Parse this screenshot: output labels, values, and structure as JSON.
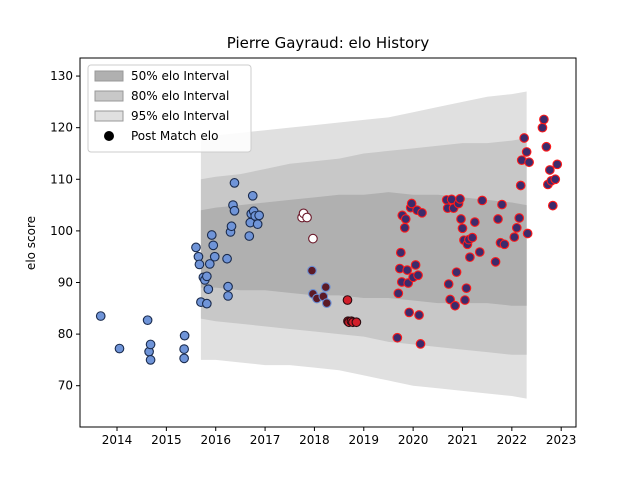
{
  "chart_data": {
    "type": "scatter",
    "title": "Pierre Gayraud: elo History",
    "xlabel": "",
    "ylabel": "elo score",
    "xlim": [
      2013.25,
      2023.3
    ],
    "ylim": [
      62,
      133.5
    ],
    "x_ticks": [
      2014,
      2015,
      2016,
      2017,
      2018,
      2019,
      2020,
      2021,
      2022,
      2023
    ],
    "y_ticks": [
      70,
      80,
      90,
      100,
      110,
      120,
      130
    ],
    "legend": {
      "placement": "top-left",
      "entries": [
        "50% elo Interval",
        "80% elo Interval",
        "95% elo Interval",
        "Post Match elo"
      ]
    },
    "bands": {
      "colors": {
        "i50": "#b0b0b0",
        "i80": "#c8c8c8",
        "i95": "#e0e0e0"
      },
      "x": [
        2015.7,
        2016.0,
        2016.5,
        2017.0,
        2017.5,
        2018.0,
        2018.5,
        2019.0,
        2019.5,
        2020.0,
        2020.5,
        2021.0,
        2021.5,
        2022.0,
        2022.3
      ],
      "i95_upper": [
        118,
        118.5,
        119,
        119.5,
        120,
        120.5,
        121,
        121.5,
        122,
        123,
        124,
        125,
        126,
        126.5,
        127
      ],
      "i95_lower": [
        75,
        75,
        74.5,
        74,
        74,
        73.5,
        73,
        72,
        71,
        70,
        69.5,
        69,
        68.5,
        68,
        67.5
      ],
      "i80_upper": [
        110,
        110.5,
        111,
        112,
        113,
        113.5,
        114,
        115,
        115.5,
        116,
        116.5,
        117,
        117,
        117.5,
        118
      ],
      "i80_lower": [
        83,
        82.5,
        82,
        81.5,
        81,
        80.5,
        80,
        79.5,
        78.5,
        78,
        77.5,
        77,
        76.5,
        76,
        76
      ],
      "i50_upper": [
        104,
        104.5,
        105,
        105.5,
        106,
        106.5,
        107,
        107,
        107.5,
        107,
        107,
        106.5,
        106,
        105.5,
        105
      ],
      "i50_lower": [
        89,
        89,
        88.5,
        88.5,
        88,
        87.5,
        87.5,
        87,
        87,
        86.5,
        86,
        86,
        86,
        85.5,
        85.5
      ]
    },
    "series": [
      {
        "name": "Post Match elo",
        "points": [
          [
            2013.67,
            83.5,
            "blue"
          ],
          [
            2014.05,
            77.2,
            "blue"
          ],
          [
            2014.62,
            82.7,
            "blue"
          ],
          [
            2014.65,
            76.6,
            "blue"
          ],
          [
            2014.68,
            78.0,
            "blue"
          ],
          [
            2014.68,
            75.0,
            "blue"
          ],
          [
            2015.37,
            79.7,
            "blue"
          ],
          [
            2015.36,
            77.1,
            "blue"
          ],
          [
            2015.36,
            75.3,
            "blue"
          ],
          [
            2015.6,
            96.8,
            "blue"
          ],
          [
            2015.65,
            95.0,
            "blue"
          ],
          [
            2015.67,
            93.5,
            "blue"
          ],
          [
            2015.7,
            86.2,
            "blue"
          ],
          [
            2015.75,
            91.0,
            "blue"
          ],
          [
            2015.78,
            90.5,
            "blue"
          ],
          [
            2015.82,
            91.2,
            "blue"
          ],
          [
            2015.82,
            85.9,
            "blue"
          ],
          [
            2015.85,
            88.7,
            "blue"
          ],
          [
            2015.88,
            93.6,
            "blue"
          ],
          [
            2015.92,
            99.2,
            "blue"
          ],
          [
            2015.95,
            97.2,
            "blue"
          ],
          [
            2015.98,
            95.0,
            "blue"
          ],
          [
            2016.23,
            94.6,
            "blue"
          ],
          [
            2016.25,
            89.2,
            "blue"
          ],
          [
            2016.25,
            87.4,
            "blue"
          ],
          [
            2016.3,
            99.8,
            "blue"
          ],
          [
            2016.32,
            100.9,
            "blue"
          ],
          [
            2016.35,
            105.0,
            "blue"
          ],
          [
            2016.38,
            103.9,
            "blue"
          ],
          [
            2016.38,
            109.3,
            "blue"
          ],
          [
            2016.68,
            99.0,
            "blue"
          ],
          [
            2016.7,
            101.6,
            "blue"
          ],
          [
            2016.72,
            103.3,
            "blue"
          ],
          [
            2016.75,
            106.8,
            "blue"
          ],
          [
            2016.77,
            103.8,
            "blue"
          ],
          [
            2016.8,
            102.9,
            "blue"
          ],
          [
            2016.85,
            101.3,
            "blue"
          ],
          [
            2016.88,
            103.0,
            "blue"
          ],
          [
            2017.75,
            102.6,
            "white"
          ],
          [
            2017.78,
            103.4,
            "white"
          ],
          [
            2017.85,
            102.6,
            "white"
          ],
          [
            2017.97,
            98.5,
            "white"
          ],
          [
            2017.95,
            92.3,
            "maroon"
          ],
          [
            2017.97,
            87.8,
            "maroon"
          ],
          [
            2018.05,
            86.9,
            "maroon"
          ],
          [
            2018.18,
            87.3,
            "maroon"
          ],
          [
            2018.23,
            89.1,
            "maroon"
          ],
          [
            2018.25,
            86.0,
            "maroon"
          ],
          [
            2018.67,
            86.6,
            "red"
          ],
          [
            2018.68,
            82.5,
            "red"
          ],
          [
            2018.7,
            82.3,
            "red"
          ],
          [
            2018.75,
            82.5,
            "red"
          ],
          [
            2018.78,
            82.3,
            "red"
          ],
          [
            2018.85,
            82.3,
            "red"
          ],
          [
            2019.68,
            79.3,
            "purple"
          ],
          [
            2019.7,
            87.9,
            "purple"
          ],
          [
            2019.73,
            92.7,
            "purple"
          ],
          [
            2019.75,
            95.8,
            "purple"
          ],
          [
            2019.77,
            90.1,
            "purple"
          ],
          [
            2019.78,
            103.0,
            "purple"
          ],
          [
            2019.83,
            100.6,
            "purple"
          ],
          [
            2019.85,
            102.3,
            "purple"
          ],
          [
            2019.88,
            92.4,
            "purple"
          ],
          [
            2019.9,
            89.9,
            "purple"
          ],
          [
            2019.92,
            84.2,
            "purple"
          ],
          [
            2019.95,
            104.5,
            "purple"
          ],
          [
            2019.97,
            105.3,
            "purple"
          ],
          [
            2020.0,
            91.0,
            "purple"
          ],
          [
            2020.05,
            93.4,
            "purple"
          ],
          [
            2020.08,
            104.0,
            "purple"
          ],
          [
            2020.1,
            91.4,
            "purple"
          ],
          [
            2020.12,
            83.7,
            "purple"
          ],
          [
            2020.15,
            78.1,
            "purple"
          ],
          [
            2020.18,
            103.5,
            "purple"
          ],
          [
            2020.68,
            106.0,
            "purple"
          ],
          [
            2020.7,
            104.4,
            "purple"
          ],
          [
            2020.72,
            89.7,
            "purple"
          ],
          [
            2020.75,
            86.7,
            "purple"
          ],
          [
            2020.78,
            106.1,
            "purple"
          ],
          [
            2020.82,
            104.4,
            "purple"
          ],
          [
            2020.85,
            85.5,
            "purple"
          ],
          [
            2020.88,
            92.0,
            "purple"
          ],
          [
            2020.92,
            105.3,
            "purple"
          ],
          [
            2020.95,
            106.2,
            "purple"
          ],
          [
            2020.97,
            102.3,
            "purple"
          ],
          [
            2021.0,
            100.5,
            "purple"
          ],
          [
            2021.03,
            98.2,
            "purple"
          ],
          [
            2021.05,
            86.6,
            "purple"
          ],
          [
            2021.08,
            88.9,
            "purple"
          ],
          [
            2021.1,
            97.4,
            "purple"
          ],
          [
            2021.13,
            98.3,
            "purple"
          ],
          [
            2021.15,
            94.9,
            "purple"
          ],
          [
            2021.2,
            98.7,
            "purple"
          ],
          [
            2021.25,
            101.7,
            "purple"
          ],
          [
            2021.35,
            95.9,
            "purple"
          ],
          [
            2021.4,
            105.9,
            "purple"
          ],
          [
            2021.67,
            94.0,
            "purple"
          ],
          [
            2021.72,
            102.3,
            "purple"
          ],
          [
            2021.77,
            97.7,
            "purple"
          ],
          [
            2021.8,
            105.1,
            "purple"
          ],
          [
            2021.85,
            97.4,
            "purple"
          ],
          [
            2022.05,
            98.8,
            "purple"
          ],
          [
            2022.1,
            100.6,
            "purple"
          ],
          [
            2022.15,
            102.5,
            "purple"
          ],
          [
            2022.18,
            108.8,
            "purple"
          ],
          [
            2022.2,
            113.7,
            "purple"
          ],
          [
            2022.25,
            118.0,
            "purple"
          ],
          [
            2022.3,
            115.3,
            "purple"
          ],
          [
            2022.32,
            99.5,
            "purple"
          ],
          [
            2022.35,
            113.3,
            "purple"
          ],
          [
            2022.62,
            120.0,
            "purple"
          ],
          [
            2022.65,
            121.6,
            "purple"
          ],
          [
            2022.7,
            116.3,
            "purple"
          ],
          [
            2022.73,
            109.0,
            "purple"
          ],
          [
            2022.77,
            111.8,
            "purple"
          ],
          [
            2022.8,
            109.7,
            "purple"
          ],
          [
            2022.83,
            104.9,
            "purple"
          ],
          [
            2022.88,
            110.0,
            "purple"
          ],
          [
            2022.92,
            112.9,
            "purple"
          ]
        ]
      }
    ],
    "point_styles": {
      "blue": {
        "fill": "#6f94d8",
        "stroke": "#1a2b4d"
      },
      "white": {
        "fill": "#ffffff",
        "stroke": "#6b1a2b"
      },
      "maroon": {
        "fill": "#5c1a26",
        "stroke": "#6b8fd4"
      },
      "red": {
        "fill": "#d21f2a",
        "stroke": "#2a0b10"
      },
      "purple": {
        "fill": "#3d2b6b",
        "stroke": "#ff1a1a"
      }
    }
  }
}
